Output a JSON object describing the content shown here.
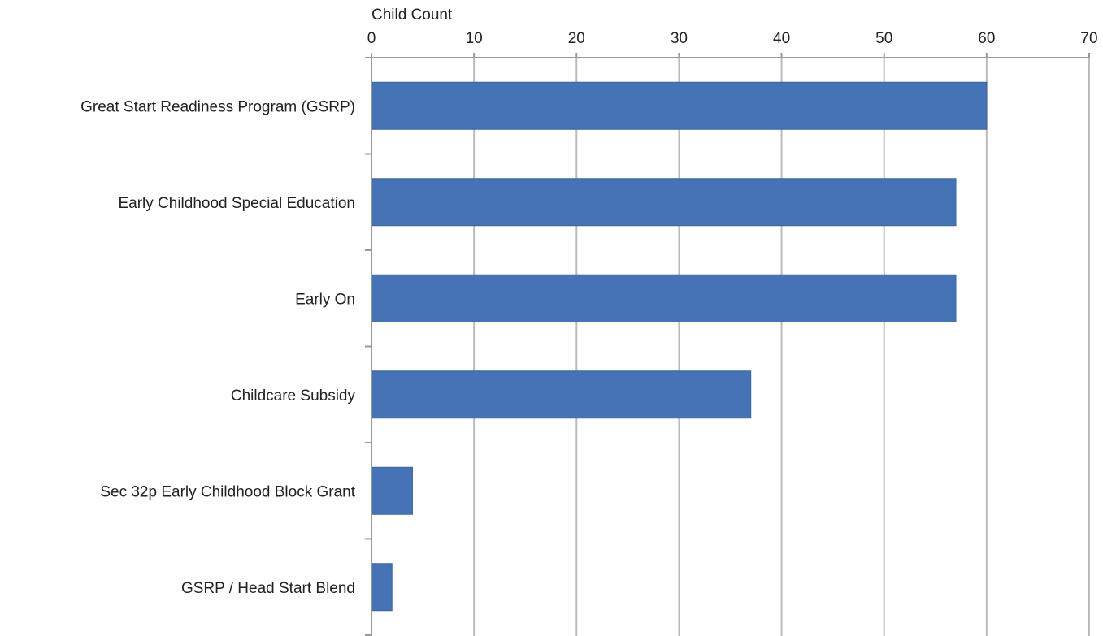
{
  "chart_data": {
    "type": "bar",
    "orientation": "horizontal",
    "xlabel": "Child Count",
    "ylabel": "",
    "title": "",
    "xlim": [
      0,
      70
    ],
    "x_ticks": [
      0,
      10,
      20,
      30,
      40,
      50,
      60,
      70
    ],
    "grid": true,
    "legend": "none",
    "categories": [
      "Great Start Readiness Program (GSRP)",
      "Early Childhood Special Education",
      "Early On",
      "Childcare Subsidy",
      "Sec 32p Early Childhood Block Grant",
      "GSRP / Head Start Blend"
    ],
    "values": [
      60,
      57,
      57,
      37,
      4,
      2
    ],
    "colors": {
      "bar": "#4573B6",
      "bar_edge": "#3C659F",
      "grid": "#BBBBBB",
      "axis": "#999999",
      "text": "#222222"
    }
  }
}
